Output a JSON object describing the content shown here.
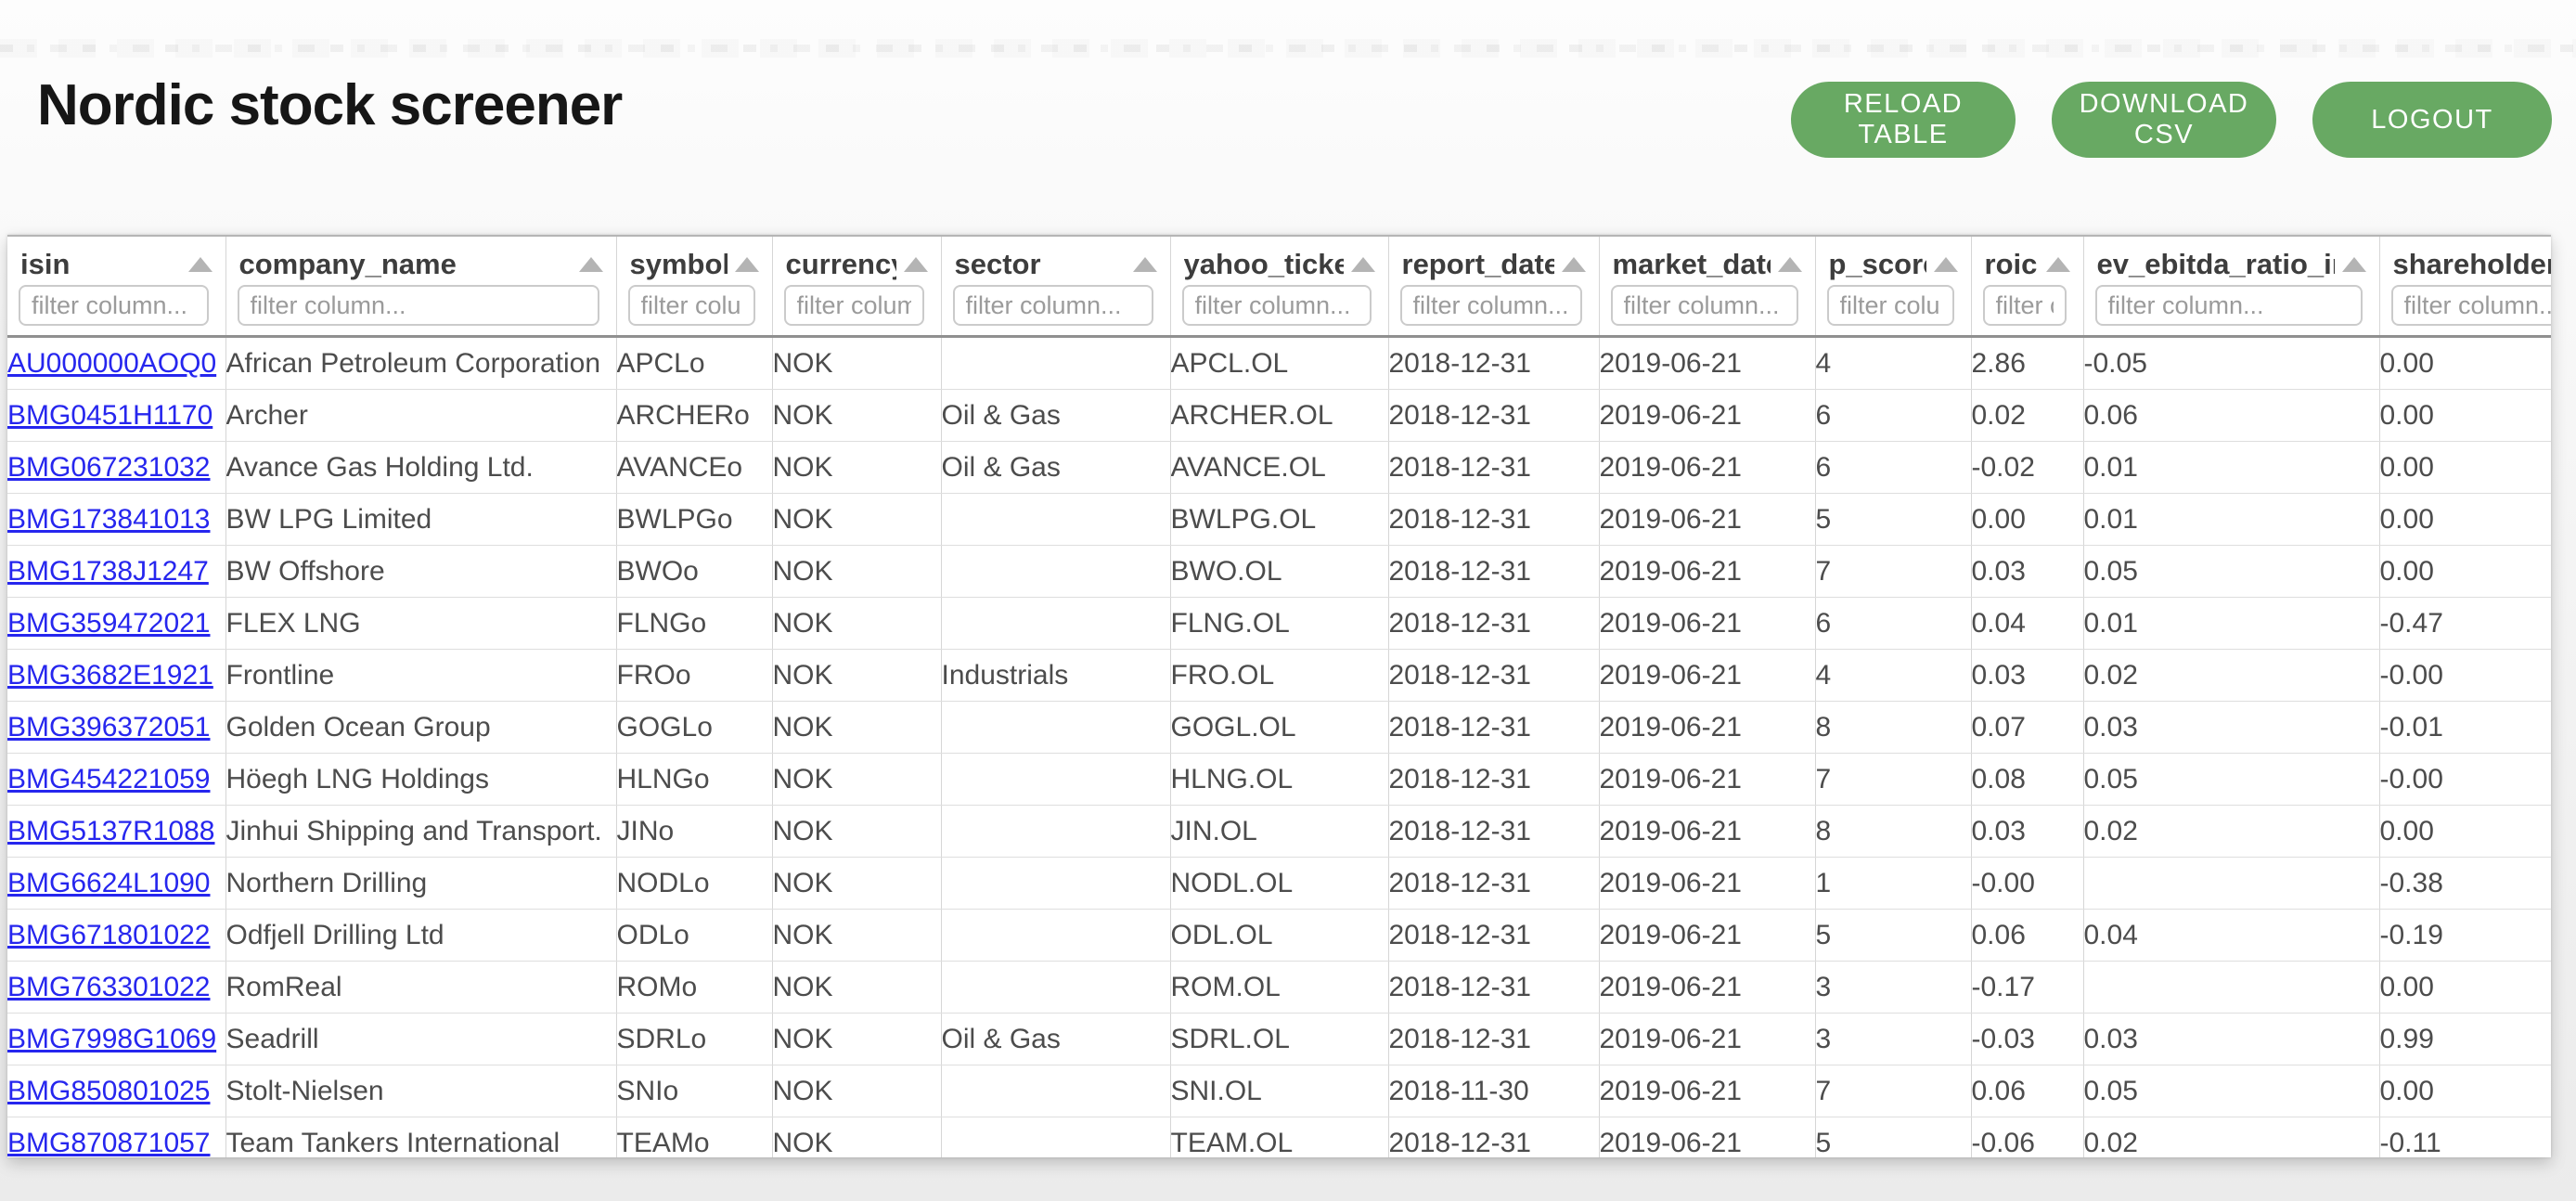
{
  "page": {
    "title": "Nordic stock screener"
  },
  "toolbar": {
    "reload_label": "RELOAD TABLE",
    "download_label": "DOWNLOAD CSV",
    "logout_label": "LOGOUT"
  },
  "colors": {
    "accent_green": "#68a963",
    "link_blue": "#2626ee"
  },
  "table": {
    "filter_placeholder": "filter column...",
    "columns": [
      {
        "key": "isin",
        "label": "isin"
      },
      {
        "key": "company_name",
        "label": "company_name"
      },
      {
        "key": "symbol",
        "label": "symbol"
      },
      {
        "key": "currency",
        "label": "currency"
      },
      {
        "key": "sector",
        "label": "sector"
      },
      {
        "key": "yahoo_ticker",
        "label": "yahoo_ticker"
      },
      {
        "key": "report_date",
        "label": "report_date"
      },
      {
        "key": "market_date",
        "label": "market_date"
      },
      {
        "key": "p_score",
        "label": "p_score"
      },
      {
        "key": "roic",
        "label": "roic"
      },
      {
        "key": "ev_ebitda_ratio_inv",
        "label": "ev_ebitda_ratio_inv"
      },
      {
        "key": "shareholder_y",
        "label": "shareholder_y"
      }
    ],
    "rows": [
      {
        "isin": "AU000000AOQ0",
        "company_name": "African Petroleum Corporation",
        "symbol": "APCLo",
        "currency": "NOK",
        "sector": "",
        "yahoo_ticker": "APCL.OL",
        "report_date": "2018-12-31",
        "market_date": "2019-06-21",
        "p_score": "4",
        "roic": "2.86",
        "ev_ebitda_ratio_inv": "-0.05",
        "shareholder_y": "0.00"
      },
      {
        "isin": "BMG0451H1170",
        "company_name": "Archer",
        "symbol": "ARCHERo",
        "currency": "NOK",
        "sector": "Oil & Gas",
        "yahoo_ticker": "ARCHER.OL",
        "report_date": "2018-12-31",
        "market_date": "2019-06-21",
        "p_score": "6",
        "roic": "0.02",
        "ev_ebitda_ratio_inv": "0.06",
        "shareholder_y": "0.00"
      },
      {
        "isin": "BMG067231032",
        "company_name": "Avance Gas Holding Ltd.",
        "symbol": "AVANCEo",
        "currency": "NOK",
        "sector": "Oil & Gas",
        "yahoo_ticker": "AVANCE.OL",
        "report_date": "2018-12-31",
        "market_date": "2019-06-21",
        "p_score": "6",
        "roic": "-0.02",
        "ev_ebitda_ratio_inv": "0.01",
        "shareholder_y": "0.00"
      },
      {
        "isin": "BMG173841013",
        "company_name": "BW LPG Limited",
        "symbol": "BWLPGo",
        "currency": "NOK",
        "sector": "",
        "yahoo_ticker": "BWLPG.OL",
        "report_date": "2018-12-31",
        "market_date": "2019-06-21",
        "p_score": "5",
        "roic": "0.00",
        "ev_ebitda_ratio_inv": "0.01",
        "shareholder_y": "0.00"
      },
      {
        "isin": "BMG1738J1247",
        "company_name": "BW Offshore",
        "symbol": "BWOo",
        "currency": "NOK",
        "sector": "",
        "yahoo_ticker": "BWO.OL",
        "report_date": "2018-12-31",
        "market_date": "2019-06-21",
        "p_score": "7",
        "roic": "0.03",
        "ev_ebitda_ratio_inv": "0.05",
        "shareholder_y": "0.00"
      },
      {
        "isin": "BMG359472021",
        "company_name": "FLEX LNG",
        "symbol": "FLNGo",
        "currency": "NOK",
        "sector": "",
        "yahoo_ticker": "FLNG.OL",
        "report_date": "2018-12-31",
        "market_date": "2019-06-21",
        "p_score": "6",
        "roic": "0.04",
        "ev_ebitda_ratio_inv": "0.01",
        "shareholder_y": "-0.47"
      },
      {
        "isin": "BMG3682E1921",
        "company_name": "Frontline",
        "symbol": "FROo",
        "currency": "NOK",
        "sector": "Industrials",
        "yahoo_ticker": "FRO.OL",
        "report_date": "2018-12-31",
        "market_date": "2019-06-21",
        "p_score": "4",
        "roic": "0.03",
        "ev_ebitda_ratio_inv": "0.02",
        "shareholder_y": "-0.00"
      },
      {
        "isin": "BMG396372051",
        "company_name": "Golden Ocean Group",
        "symbol": "GOGLo",
        "currency": "NOK",
        "sector": "",
        "yahoo_ticker": "GOGL.OL",
        "report_date": "2018-12-31",
        "market_date": "2019-06-21",
        "p_score": "8",
        "roic": "0.07",
        "ev_ebitda_ratio_inv": "0.03",
        "shareholder_y": "-0.01"
      },
      {
        "isin": "BMG454221059",
        "company_name": "Höegh LNG Holdings",
        "symbol": "HLNGo",
        "currency": "NOK",
        "sector": "",
        "yahoo_ticker": "HLNG.OL",
        "report_date": "2018-12-31",
        "market_date": "2019-06-21",
        "p_score": "7",
        "roic": "0.08",
        "ev_ebitda_ratio_inv": "0.05",
        "shareholder_y": "-0.00"
      },
      {
        "isin": "BMG5137R1088",
        "company_name": "Jinhui Shipping and Transport.",
        "symbol": "JINo",
        "currency": "NOK",
        "sector": "",
        "yahoo_ticker": "JIN.OL",
        "report_date": "2018-12-31",
        "market_date": "2019-06-21",
        "p_score": "8",
        "roic": "0.03",
        "ev_ebitda_ratio_inv": "0.02",
        "shareholder_y": "0.00"
      },
      {
        "isin": "BMG6624L1090",
        "company_name": "Northern Drilling",
        "symbol": "NODLo",
        "currency": "NOK",
        "sector": "",
        "yahoo_ticker": "NODL.OL",
        "report_date": "2018-12-31",
        "market_date": "2019-06-21",
        "p_score": "1",
        "roic": "-0.00",
        "ev_ebitda_ratio_inv": "",
        "shareholder_y": "-0.38"
      },
      {
        "isin": "BMG671801022",
        "company_name": "Odfjell Drilling Ltd",
        "symbol": "ODLo",
        "currency": "NOK",
        "sector": "",
        "yahoo_ticker": "ODL.OL",
        "report_date": "2018-12-31",
        "market_date": "2019-06-21",
        "p_score": "5",
        "roic": "0.06",
        "ev_ebitda_ratio_inv": "0.04",
        "shareholder_y": "-0.19"
      },
      {
        "isin": "BMG763301022",
        "company_name": "RomReal",
        "symbol": "ROMo",
        "currency": "NOK",
        "sector": "",
        "yahoo_ticker": "ROM.OL",
        "report_date": "2018-12-31",
        "market_date": "2019-06-21",
        "p_score": "3",
        "roic": "-0.17",
        "ev_ebitda_ratio_inv": "",
        "shareholder_y": "0.00"
      },
      {
        "isin": "BMG7998G1069",
        "company_name": "Seadrill",
        "symbol": "SDRLo",
        "currency": "NOK",
        "sector": "Oil & Gas",
        "yahoo_ticker": "SDRL.OL",
        "report_date": "2018-12-31",
        "market_date": "2019-06-21",
        "p_score": "3",
        "roic": "-0.03",
        "ev_ebitda_ratio_inv": "0.03",
        "shareholder_y": "0.99"
      },
      {
        "isin": "BMG850801025",
        "company_name": "Stolt-Nielsen",
        "symbol": "SNIo",
        "currency": "NOK",
        "sector": "",
        "yahoo_ticker": "SNI.OL",
        "report_date": "2018-11-30",
        "market_date": "2019-06-21",
        "p_score": "7",
        "roic": "0.06",
        "ev_ebitda_ratio_inv": "0.05",
        "shareholder_y": "0.00"
      },
      {
        "isin": "BMG870871057",
        "company_name": "Team Tankers International",
        "symbol": "TEAMo",
        "currency": "NOK",
        "sector": "",
        "yahoo_ticker": "TEAM.OL",
        "report_date": "2018-12-31",
        "market_date": "2019-06-21",
        "p_score": "5",
        "roic": "-0.06",
        "ev_ebitda_ratio_inv": "0.02",
        "shareholder_y": "-0.11"
      }
    ]
  }
}
